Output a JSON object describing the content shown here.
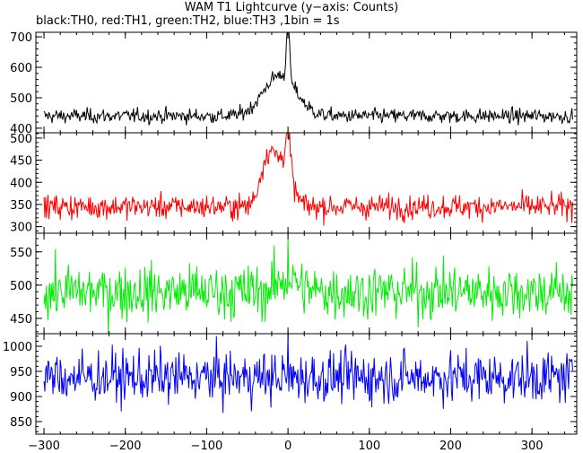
{
  "chart_data": {
    "type": "line",
    "title": "WAM T1 Lightcurve (y−axis: Counts)",
    "subtitle": "black:TH0, red:TH1, green:TH2, blue:TH3 ,1bin = 1s",
    "ylabel": "Counts",
    "xlim": [
      -310,
      355
    ],
    "xticks": [
      -300,
      -200,
      -100,
      0,
      100,
      200,
      300
    ],
    "bin": "1s",
    "panels": [
      {
        "name": "TH0",
        "color": "#000000",
        "ylim": [
          385,
          715
        ],
        "yticks": [
          400,
          500,
          600,
          700
        ],
        "baseline": 440,
        "noise": 14,
        "features": [
          {
            "center": -10,
            "width": 20,
            "amp": 135
          },
          {
            "center": 0,
            "width": 2,
            "amp": 180
          }
        ],
        "peak_at_0": 715
      },
      {
        "name": "TH1",
        "color": "#ff0000",
        "ylim": [
          285,
          512
        ],
        "yticks": [
          300,
          350,
          400,
          450,
          500
        ],
        "baseline": 345,
        "noise": 16,
        "features": [
          {
            "center": -25,
            "width": 9,
            "amp": 110
          },
          {
            "center": -5,
            "width": 10,
            "amp": 95
          },
          {
            "center": 0,
            "width": 3,
            "amp": 80
          }
        ],
        "peak_at_0": 510
      },
      {
        "name": "TH2",
        "color": "#00ee00",
        "ylim": [
          427,
          578
        ],
        "yticks": [
          450,
          500,
          550
        ],
        "baseline": 490,
        "noise": 24,
        "features": [
          {
            "center": 0,
            "width": 12,
            "amp": 20
          }
        ],
        "peak_at_0": 570
      },
      {
        "name": "TH3",
        "color": "#0000ff",
        "ylim": [
          825,
          1025
        ],
        "yticks": [
          850,
          900,
          950,
          1000
        ],
        "baseline": 938,
        "noise": 30,
        "features": [],
        "peak_at_0": 1025
      }
    ]
  }
}
